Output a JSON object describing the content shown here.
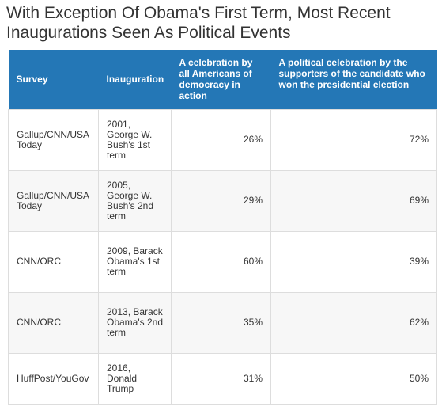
{
  "chart_data": {
    "type": "table",
    "title": "With Exception Of Obama's First Term, Most Recent Inaugurations Seen As Political Events",
    "columns": [
      "Survey",
      "Inauguration",
      "A celebration by all Americans of democracy in action",
      "A political celebration by the supporters of the candidate who won the presidential election"
    ],
    "rows": [
      {
        "survey": "Gallup/CNN/USA Today",
        "inauguration": "2001, George W. Bush's 1st term",
        "celebration_all": "26%",
        "political_celebration": "72%"
      },
      {
        "survey": "Gallup/CNN/USA Today",
        "inauguration": "2005, George W. Bush's 2nd term",
        "celebration_all": "29%",
        "political_celebration": "69%"
      },
      {
        "survey": "CNN/ORC",
        "inauguration": "2009, Barack Obama's 1st term",
        "celebration_all": "60%",
        "political_celebration": "39%"
      },
      {
        "survey": "CNN/ORC",
        "inauguration": "2013, Barack Obama's 2nd term",
        "celebration_all": "35%",
        "political_celebration": "62%"
      },
      {
        "survey": "HuffPost/YouGov",
        "inauguration": "2016, Donald Trump",
        "celebration_all": "31%",
        "political_celebration": "50%"
      }
    ]
  },
  "colors": {
    "header_bg": "#2477b6",
    "header_text": "#ffffff",
    "row_alt_bg": "#f7f7f7",
    "border": "#dddddd"
  }
}
